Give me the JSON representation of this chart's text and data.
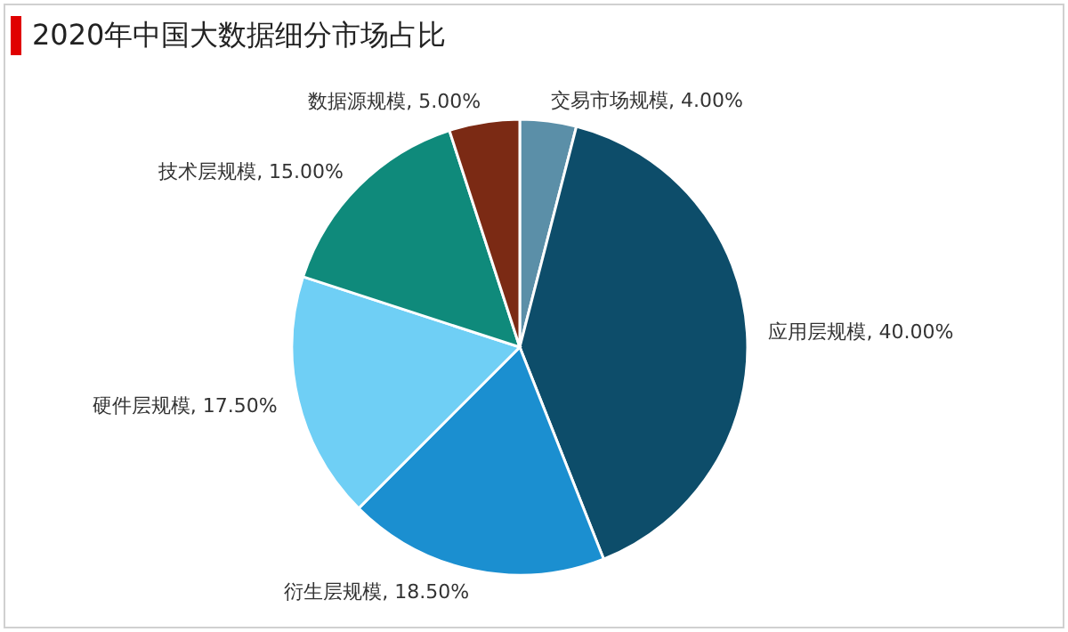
{
  "chart_data": {
    "type": "pie",
    "title": "2020年中国大数据细分市场占比",
    "categories": [
      "交易市场规模",
      "应用层规模",
      "衍生层规模",
      "硬件层规模",
      "技术层规模",
      "数据源规模"
    ],
    "values": [
      4,
      40,
      18.5,
      17.5,
      15,
      5
    ],
    "value_labels": [
      "4.00%",
      "40.00%",
      "18.50%",
      "17.50%",
      "15.00%",
      "5.00%"
    ],
    "colors": [
      "#5b8fa8",
      "#0d4d6a",
      "#1b8fd0",
      "#6fcff5",
      "#0f8a7b",
      "#7b2a14"
    ],
    "legend": false
  }
}
